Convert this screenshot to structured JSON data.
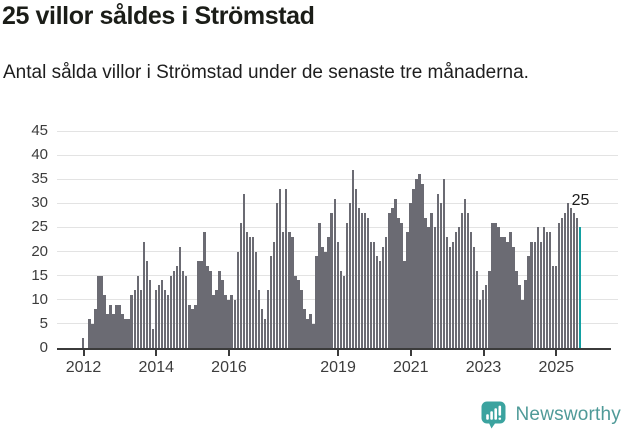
{
  "header": {
    "title": "25 villor såldes i Strömstad",
    "subtitle": "Antal sålda villor i Strömstad under de senaste tre månaderna."
  },
  "chart_data": {
    "type": "bar",
    "title": "25 villor såldes i Strömstad",
    "series_name": "Antal sålda villor, rullande tre månader",
    "x_start_year": 2012,
    "frequency": "monthly",
    "values": [
      2,
      0,
      6,
      5,
      8,
      15,
      15,
      11,
      7,
      9,
      7,
      9,
      9,
      7,
      6,
      6,
      11,
      12,
      15,
      12,
      22,
      18,
      14,
      4,
      12,
      13,
      14,
      12,
      11,
      15,
      16,
      17,
      21,
      16,
      15,
      9,
      8,
      9,
      18,
      18,
      24,
      17,
      16,
      11,
      12,
      16,
      14,
      11,
      10,
      11,
      10,
      20,
      26,
      32,
      24,
      23,
      23,
      20,
      12,
      8,
      6,
      12,
      19,
      22,
      30,
      33,
      24,
      33,
      24,
      23,
      15,
      14,
      12,
      8,
      6,
      7,
      5,
      19,
      26,
      21,
      20,
      23,
      28,
      31,
      22,
      16,
      15,
      26,
      30,
      37,
      33,
      29,
      28,
      28,
      27,
      22,
      22,
      19,
      18,
      21,
      23,
      28,
      29,
      31,
      27,
      26,
      18,
      24,
      30,
      33,
      35,
      36,
      34,
      27,
      25,
      28,
      25,
      32,
      30,
      35,
      23,
      21,
      22,
      24,
      25,
      28,
      31,
      28,
      24,
      21,
      16,
      10,
      12,
      13,
      16,
      26,
      26,
      25,
      23,
      23,
      22,
      24,
      21,
      16,
      13,
      10,
      14,
      19,
      22,
      22,
      25,
      22,
      25,
      24,
      24,
      17,
      17,
      26,
      27,
      28,
      30,
      29,
      28,
      27,
      25
    ],
    "highlight": {
      "index": 164,
      "value": 25,
      "label": "25"
    },
    "ylim": [
      0,
      45
    ],
    "yticks": [
      0,
      5,
      10,
      15,
      20,
      25,
      30,
      35,
      40,
      45
    ],
    "xtick_labels": [
      "2012",
      "2014",
      "2016",
      "2019",
      "2021",
      "2023",
      "2025"
    ],
    "xtick_years": [
      2012,
      2014,
      2016,
      2019,
      2021,
      2023,
      2025
    ],
    "grid": true,
    "legend": "none",
    "colors": {
      "bar": "#6b6b73",
      "highlight": "#12a0a2",
      "gridline": "#e3e3e3",
      "axis": "#3b3b3b",
      "tick_label": "#3c3c3c"
    }
  },
  "footer": {
    "brand": "Newsworthy",
    "logo_icon": "newsworthy-speech-bubble-chart-icon",
    "brand_color": "#4f9a98",
    "icon_color": "#3ba39f"
  }
}
